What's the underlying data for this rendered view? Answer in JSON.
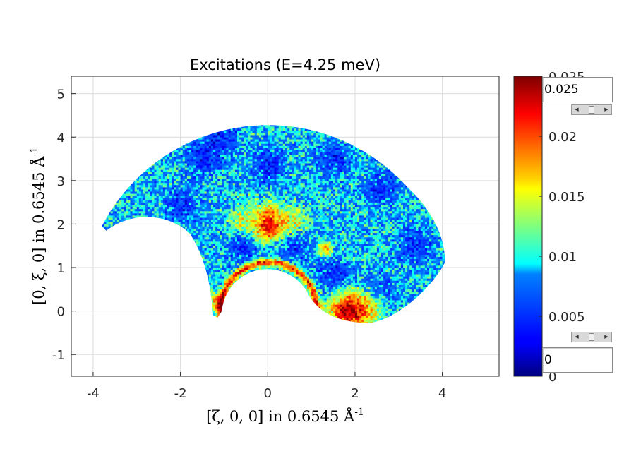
{
  "chart_data": {
    "type": "heatmap",
    "title": "Excitations (E=4.25 meV)",
    "xlabel": "[ζ, 0, 0] in 0.6545 Å",
    "xlabel_sup": "-1",
    "ylabel": "[0, ξ, 0] in 0.6545 Å",
    "ylabel_sup": "-1",
    "xlim": [
      -4.5,
      5.3
    ],
    "ylim": [
      -1.5,
      5.4
    ],
    "xticks": [
      -4,
      -2,
      0,
      2,
      4
    ],
    "xtick_labels": [
      "-4",
      "-2",
      "0",
      "2",
      "4"
    ],
    "yticks": [
      -1,
      0,
      1,
      2,
      3,
      4,
      5
    ],
    "ytick_labels": [
      "-1",
      "0",
      "1",
      "2",
      "3",
      "4",
      "5"
    ],
    "grid": true,
    "colormap": "jet",
    "clim": [
      0,
      0.025
    ],
    "colorbar_ticks": [
      0,
      0.005,
      0.01,
      0.015,
      0.02,
      0.025
    ],
    "colorbar_tick_labels": [
      "0",
      "0.005",
      "0.01",
      "0.015",
      "0.02",
      "0.025"
    ],
    "coverage": {
      "outer_radius": 4.28,
      "cut_circle_center": [
        0.0,
        0.0
      ],
      "cut_circle_radius": 1.05,
      "left_lobe_tip": [
        -3.8,
        1.95
      ],
      "lower_lobe_tip": [
        -1.15,
        -0.15
      ],
      "right_lobe_edge": [
        4.05,
        1.1
      ],
      "bottom_edge_point": [
        2.3,
        -0.28
      ]
    },
    "features": [
      {
        "name": "ring around cut",
        "radius": 1.08,
        "intensity": 0.019
      },
      {
        "name": "central vertical streak",
        "x": 0.0,
        "y_range": [
          1.3,
          2.5
        ],
        "intensity": 0.018
      },
      {
        "name": "bright patch lower right",
        "center": [
          1.8,
          -0.05
        ],
        "intensity": 0.022
      },
      {
        "name": "diagonal streak",
        "from": [
          1.2,
          1.5
        ],
        "to": [
          1.5,
          1.25
        ],
        "intensity": 0.017
      }
    ]
  },
  "controls": {
    "clim_max_value": "0.025",
    "clim_min_value": "0"
  },
  "colors": {
    "axes_bg": "#ffffff",
    "grid": "#dcdcdc",
    "axis_line": "#262626",
    "colormap_low": "#00007f",
    "colormap_high": "#7f0000"
  }
}
